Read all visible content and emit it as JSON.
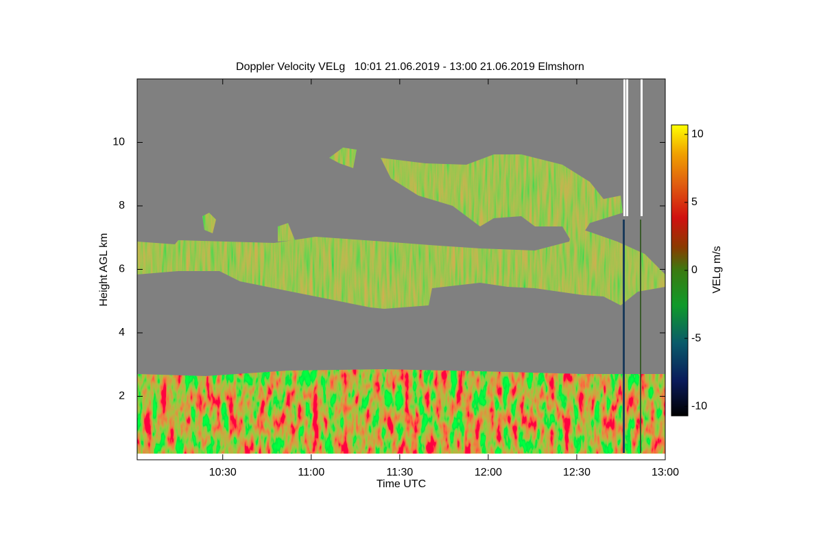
{
  "chart_data": {
    "type": "heatmap",
    "title": "Doppler Velocity VELg   10:01 21.06.2019 - 13:00 21.06.2019 Elmshorn",
    "x_label": "Time UTC",
    "y_label": "Height AGL km",
    "xlim": [
      601,
      780
    ],
    "xticks": [
      {
        "value": 630,
        "label": "10:30"
      },
      {
        "value": 660,
        "label": "11:00"
      },
      {
        "value": 690,
        "label": "11:30"
      },
      {
        "value": 720,
        "label": "12:00"
      },
      {
        "value": 750,
        "label": "12:30"
      },
      {
        "value": 780,
        "label": "13:00"
      }
    ],
    "ylim": [
      0,
      12
    ],
    "yticks": [
      2,
      4,
      6,
      8,
      10
    ],
    "colorbar_label": "VELg m/s",
    "clim": [
      -10.7,
      10.7
    ],
    "cticks": [
      -10,
      -5,
      0,
      5,
      10
    ]
  }
}
